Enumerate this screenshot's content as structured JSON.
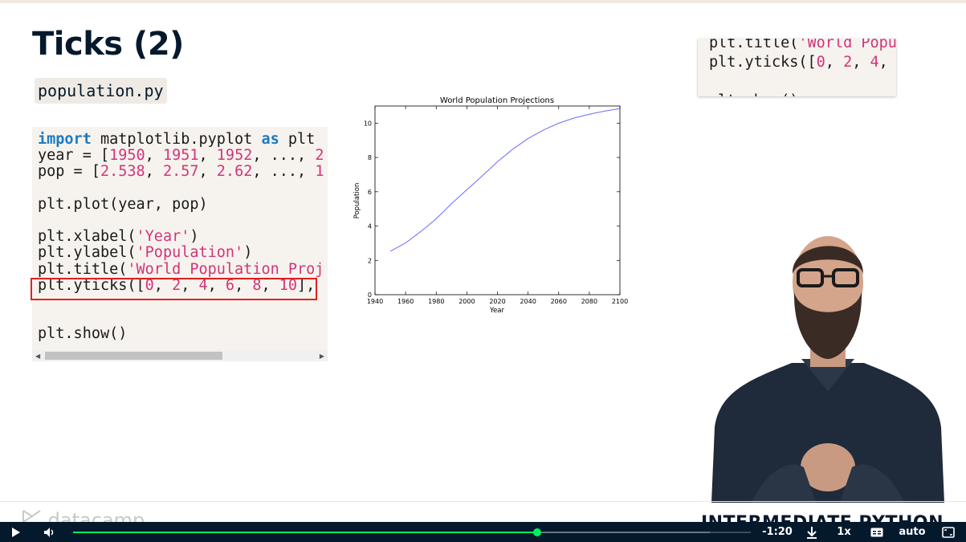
{
  "slide": {
    "title": "Ticks (2)",
    "filename": "population.py"
  },
  "code_lines": [
    [
      {
        "t": "import",
        "c": "kw"
      },
      {
        "t": " matplotlib.pyplot ",
        "c": ""
      },
      {
        "t": "as",
        "c": "kw"
      },
      {
        "t": " plt",
        "c": ""
      }
    ],
    [
      {
        "t": "year = [",
        "c": ""
      },
      {
        "t": "1950",
        "c": "num"
      },
      {
        "t": ", ",
        "c": ""
      },
      {
        "t": "1951",
        "c": "num"
      },
      {
        "t": ", ",
        "c": ""
      },
      {
        "t": "1952",
        "c": "num"
      },
      {
        "t": ", ..., ",
        "c": ""
      },
      {
        "t": "2",
        "c": "num"
      }
    ],
    [
      {
        "t": "pop = [",
        "c": ""
      },
      {
        "t": "2.538",
        "c": "num"
      },
      {
        "t": ", ",
        "c": ""
      },
      {
        "t": "2.57",
        "c": "num"
      },
      {
        "t": ", ",
        "c": ""
      },
      {
        "t": "2.62",
        "c": "num"
      },
      {
        "t": ", ..., ",
        "c": ""
      },
      {
        "t": "1",
        "c": "num"
      }
    ],
    [],
    [
      {
        "t": "plt.plot(year, pop)",
        "c": ""
      }
    ],
    [],
    [
      {
        "t": "plt.xlabel(",
        "c": ""
      },
      {
        "t": "'Year'",
        "c": "str"
      },
      {
        "t": ")",
        "c": ""
      }
    ],
    [
      {
        "t": "plt.ylabel(",
        "c": ""
      },
      {
        "t": "'Population'",
        "c": "str"
      },
      {
        "t": ")",
        "c": ""
      }
    ],
    [
      {
        "t": "plt.title(",
        "c": ""
      },
      {
        "t": "'World Population Proj",
        "c": "str"
      }
    ],
    [
      {
        "t": "plt.yticks([",
        "c": ""
      },
      {
        "t": "0",
        "c": "num"
      },
      {
        "t": ", ",
        "c": ""
      },
      {
        "t": "2",
        "c": "num"
      },
      {
        "t": ", ",
        "c": ""
      },
      {
        "t": "4",
        "c": "num"
      },
      {
        "t": ", ",
        "c": ""
      },
      {
        "t": "6",
        "c": "num"
      },
      {
        "t": ", ",
        "c": ""
      },
      {
        "t": "8",
        "c": "num"
      },
      {
        "t": ", ",
        "c": ""
      },
      {
        "t": "10",
        "c": "num"
      },
      {
        "t": "],",
        "c": ""
      }
    ],
    [],
    [],
    [
      {
        "t": "plt.show()",
        "c": ""
      }
    ]
  ],
  "snippet_lines": [
    [
      {
        "t": "plt.title(",
        "c": ""
      },
      {
        "t": "'World Popu",
        "c": "str"
      }
    ],
    [
      {
        "t": "plt.yticks([",
        "c": ""
      },
      {
        "t": "0",
        "c": "num"
      },
      {
        "t": ", ",
        "c": ""
      },
      {
        "t": "2",
        "c": "num"
      },
      {
        "t": ", ",
        "c": ""
      },
      {
        "t": "4",
        "c": "num"
      },
      {
        "t": ",",
        "c": ""
      }
    ],
    [],
    [
      {
        "t": "plt.show()",
        "c": ""
      }
    ]
  ],
  "chart_data": {
    "type": "line",
    "title": "World Population Projections",
    "xlabel": "Year",
    "ylabel": "Population",
    "xlim": [
      1940,
      2100
    ],
    "ylim": [
      0,
      11
    ],
    "xticks": [
      1940,
      1960,
      1980,
      2000,
      2020,
      2040,
      2060,
      2080,
      2100
    ],
    "yticks": [
      0,
      2,
      4,
      6,
      8,
      10
    ],
    "grid": false,
    "color": "#6b6bff",
    "series": [
      {
        "x": [
          1950,
          1960,
          1970,
          1980,
          1990,
          2000,
          2010,
          2020,
          2030,
          2040,
          2050,
          2060,
          2070,
          2080,
          2090,
          2100
        ],
        "values": [
          2.53,
          3.02,
          3.69,
          4.43,
          5.31,
          6.12,
          6.92,
          7.75,
          8.48,
          9.1,
          9.6,
          10.0,
          10.3,
          10.52,
          10.7,
          10.85
        ]
      }
    ]
  },
  "footer": {
    "brand": "datacamp",
    "course": "INTERMEDIATE PYTHON"
  },
  "player": {
    "time_remaining": "-1:20",
    "speed": "1x",
    "quality": "auto",
    "progress": 0.685,
    "icons": [
      "play-icon",
      "volume-icon",
      "download-icon",
      "captions-icon",
      "fullscreen-icon"
    ]
  },
  "colors": {
    "title": "#05192d",
    "accent_green": "#03ef62",
    "player_bg": "#05192d",
    "highlight_box": "#e02020"
  }
}
